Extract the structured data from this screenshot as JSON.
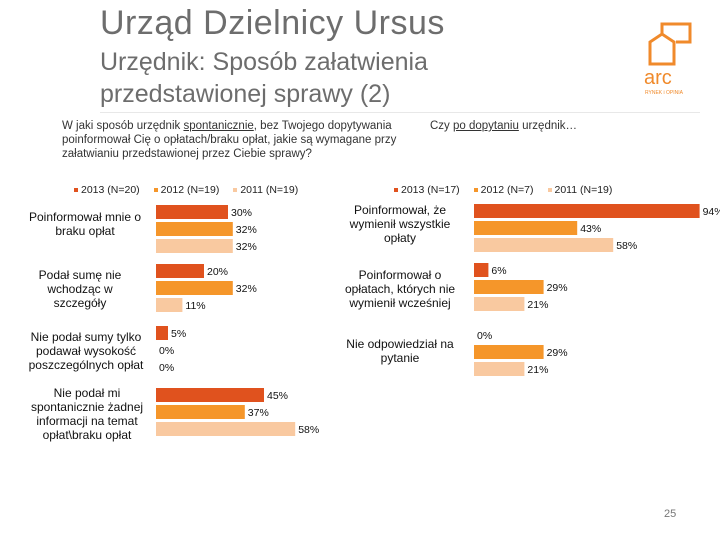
{
  "header": {
    "title": "Urząd Dzielnicy Ursus",
    "subtitle": "Urzędnik: Sposób załatwienia przedstawionej sprawy (2)"
  },
  "logo": {
    "text": "arc",
    "tagline": "RYNEK i OPINIA"
  },
  "page_number": "25",
  "colors": {
    "s2013": "#e0521e",
    "s2012": "#f5962a",
    "s2011": "#f9c9a0"
  },
  "chart_data": [
    {
      "type": "bar",
      "orientation": "horizontal",
      "question_pre": "W jaki sposób urzędnik ",
      "question_underlined": "spontanicznie",
      "question_post": ", bez Twojego dopytywania poinformował Cię o opłatach/braku opłat, jakie są wymagane przy załatwianiu przedstawionej przez Ciebie sprawy?",
      "series": [
        {
          "name": "2013 (N=20)",
          "values": [
            30,
            20,
            5,
            45
          ]
        },
        {
          "name": "2012 (N=19)",
          "values": [
            32,
            32,
            0,
            37
          ]
        },
        {
          "name": "2011 (N=19)",
          "values": [
            32,
            11,
            0,
            58
          ]
        }
      ],
      "categories": [
        "Poinformował mnie o braku opłat",
        "Podał sumę nie wchodząc w szczegóły",
        "Nie podał sumy tylko podawał wysokość poszczególnych opłat",
        "Nie podał mi spontanicznie żadnej informacji na temat opłat\\braku opłat"
      ],
      "value_labels": [
        [
          "30%",
          "32%",
          "32%"
        ],
        [
          "20%",
          "32%",
          "11%"
        ],
        [
          "5%",
          "0%",
          "0%"
        ],
        [
          "45%",
          "37%",
          "58%"
        ]
      ]
    },
    {
      "type": "bar",
      "orientation": "horizontal",
      "question_pre": "Czy ",
      "question_underlined": "po dopytaniu",
      "question_post": " urzędnik…",
      "series": [
        {
          "name": "2013 (N=17)",
          "values": [
            94,
            6,
            0
          ]
        },
        {
          "name": "2012 (N=7)",
          "values": [
            43,
            29,
            29
          ]
        },
        {
          "name": "2011 (N=19)",
          "values": [
            58,
            21,
            21
          ]
        }
      ],
      "categories": [
        "Poinformował, że wymienił wszystkie opłaty",
        "Poinformował o opłatach, których nie wymienił wcześniej",
        "Nie odpowiedział na pytanie"
      ],
      "value_labels": [
        [
          "94%",
          "43%",
          "58%"
        ],
        [
          "6%",
          "29%",
          "21%"
        ],
        [
          "0%",
          "29%",
          "21%"
        ]
      ]
    }
  ]
}
